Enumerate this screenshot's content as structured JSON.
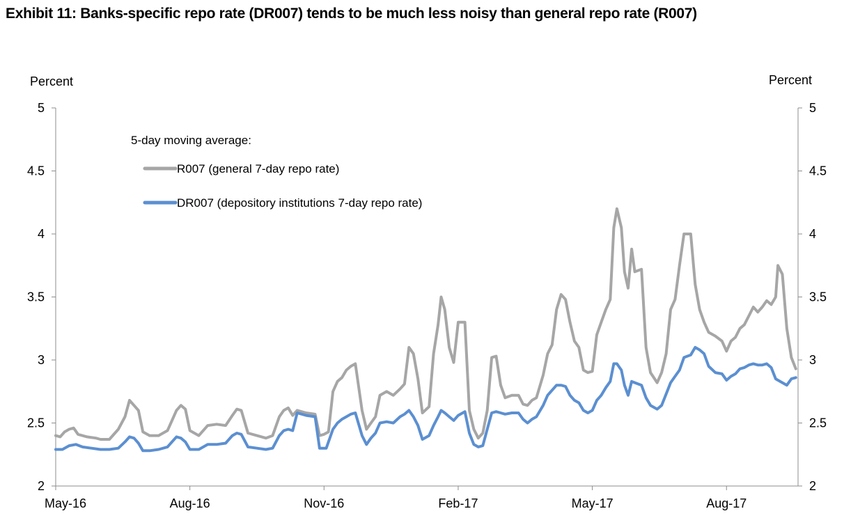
{
  "title": "Exhibit 11: Banks-specific repo rate (DR007) tends to be much less noisy than general repo rate (R007)",
  "chart_data": {
    "type": "line",
    "ylabel_left": "Percent",
    "ylabel_right": "Percent",
    "ylim": [
      2,
      5
    ],
    "yticks": [
      "2",
      "2.5",
      "3",
      "3.5",
      "4",
      "4.5",
      "5"
    ],
    "ytick_values": [
      2,
      2.5,
      3,
      3.5,
      4,
      4.5,
      5
    ],
    "xlim": [
      0,
      16.6
    ],
    "x_unit": "months since May-16",
    "xticks": [
      "May-16",
      "Aug-16",
      "Nov-16",
      "Feb-17",
      "May-17",
      "Aug-17"
    ],
    "xtick_values": [
      0,
      3,
      6,
      9,
      12,
      15
    ],
    "legend_title": "5-day moving average:",
    "legend_position": "top-left",
    "series": [
      {
        "name": "R007 (general 7-day repo rate)",
        "color": "#a6a6a6",
        "points": [
          [
            0.0,
            2.4
          ],
          [
            0.1,
            2.39
          ],
          [
            0.2,
            2.43
          ],
          [
            0.3,
            2.45
          ],
          [
            0.4,
            2.46
          ],
          [
            0.5,
            2.41
          ],
          [
            0.7,
            2.39
          ],
          [
            0.9,
            2.38
          ],
          [
            1.0,
            2.37
          ],
          [
            1.2,
            2.37
          ],
          [
            1.4,
            2.45
          ],
          [
            1.55,
            2.55
          ],
          [
            1.65,
            2.68
          ],
          [
            1.75,
            2.64
          ],
          [
            1.85,
            2.6
          ],
          [
            1.95,
            2.43
          ],
          [
            2.1,
            2.4
          ],
          [
            2.3,
            2.4
          ],
          [
            2.5,
            2.44
          ],
          [
            2.6,
            2.52
          ],
          [
            2.7,
            2.6
          ],
          [
            2.8,
            2.64
          ],
          [
            2.9,
            2.61
          ],
          [
            3.0,
            2.44
          ],
          [
            3.2,
            2.4
          ],
          [
            3.4,
            2.48
          ],
          [
            3.6,
            2.49
          ],
          [
            3.8,
            2.48
          ],
          [
            3.95,
            2.56
          ],
          [
            4.05,
            2.61
          ],
          [
            4.15,
            2.6
          ],
          [
            4.3,
            2.42
          ],
          [
            4.5,
            2.4
          ],
          [
            4.7,
            2.38
          ],
          [
            4.85,
            2.4
          ],
          [
            5.0,
            2.55
          ],
          [
            5.1,
            2.6
          ],
          [
            5.2,
            2.62
          ],
          [
            5.3,
            2.56
          ],
          [
            5.4,
            2.6
          ],
          [
            5.6,
            2.58
          ],
          [
            5.8,
            2.57
          ],
          [
            5.9,
            2.4
          ],
          [
            6.0,
            2.41
          ],
          [
            6.1,
            2.43
          ],
          [
            6.2,
            2.75
          ],
          [
            6.3,
            2.83
          ],
          [
            6.4,
            2.86
          ],
          [
            6.5,
            2.92
          ],
          [
            6.6,
            2.95
          ],
          [
            6.7,
            2.97
          ],
          [
            6.85,
            2.6
          ],
          [
            6.95,
            2.45
          ],
          [
            7.05,
            2.5
          ],
          [
            7.15,
            2.55
          ],
          [
            7.25,
            2.72
          ],
          [
            7.4,
            2.75
          ],
          [
            7.55,
            2.72
          ],
          [
            7.7,
            2.77
          ],
          [
            7.8,
            2.81
          ],
          [
            7.9,
            3.1
          ],
          [
            8.0,
            3.05
          ],
          [
            8.1,
            2.85
          ],
          [
            8.2,
            2.58
          ],
          [
            8.35,
            2.63
          ],
          [
            8.45,
            3.05
          ],
          [
            8.55,
            3.28
          ],
          [
            8.62,
            3.5
          ],
          [
            8.7,
            3.4
          ],
          [
            8.8,
            3.1
          ],
          [
            8.9,
            2.98
          ],
          [
            9.0,
            3.3
          ],
          [
            9.1,
            3.3
          ],
          [
            9.15,
            3.3
          ],
          [
            9.25,
            2.6
          ],
          [
            9.35,
            2.45
          ],
          [
            9.45,
            2.38
          ],
          [
            9.55,
            2.42
          ],
          [
            9.65,
            2.6
          ],
          [
            9.75,
            3.02
          ],
          [
            9.85,
            3.03
          ],
          [
            9.95,
            2.8
          ],
          [
            10.05,
            2.7
          ],
          [
            10.2,
            2.72
          ],
          [
            10.35,
            2.72
          ],
          [
            10.45,
            2.65
          ],
          [
            10.55,
            2.64
          ],
          [
            10.65,
            2.68
          ],
          [
            10.75,
            2.7
          ],
          [
            10.9,
            2.88
          ],
          [
            11.0,
            3.05
          ],
          [
            11.1,
            3.12
          ],
          [
            11.2,
            3.4
          ],
          [
            11.3,
            3.52
          ],
          [
            11.4,
            3.48
          ],
          [
            11.5,
            3.3
          ],
          [
            11.6,
            3.15
          ],
          [
            11.7,
            3.1
          ],
          [
            11.8,
            2.92
          ],
          [
            11.9,
            2.9
          ],
          [
            12.0,
            2.91
          ],
          [
            12.1,
            3.2
          ],
          [
            12.2,
            3.3
          ],
          [
            12.3,
            3.4
          ],
          [
            12.4,
            3.48
          ],
          [
            12.48,
            4.05
          ],
          [
            12.55,
            4.2
          ],
          [
            12.65,
            4.05
          ],
          [
            12.72,
            3.7
          ],
          [
            12.8,
            3.57
          ],
          [
            12.88,
            3.88
          ],
          [
            12.95,
            3.7
          ],
          [
            13.1,
            3.72
          ],
          [
            13.2,
            3.1
          ],
          [
            13.3,
            2.9
          ],
          [
            13.45,
            2.82
          ],
          [
            13.55,
            2.9
          ],
          [
            13.65,
            3.05
          ],
          [
            13.75,
            3.4
          ],
          [
            13.85,
            3.48
          ],
          [
            13.95,
            3.75
          ],
          [
            14.05,
            4.0
          ],
          [
            14.2,
            4.0
          ],
          [
            14.3,
            3.6
          ],
          [
            14.4,
            3.4
          ],
          [
            14.5,
            3.3
          ],
          [
            14.6,
            3.22
          ],
          [
            14.75,
            3.19
          ],
          [
            14.9,
            3.15
          ],
          [
            15.0,
            3.07
          ],
          [
            15.1,
            3.15
          ],
          [
            15.2,
            3.18
          ],
          [
            15.3,
            3.25
          ],
          [
            15.4,
            3.28
          ],
          [
            15.5,
            3.35
          ],
          [
            15.6,
            3.42
          ],
          [
            15.7,
            3.38
          ],
          [
            15.8,
            3.42
          ],
          [
            15.9,
            3.47
          ],
          [
            16.0,
            3.44
          ],
          [
            16.1,
            3.5
          ],
          [
            16.15,
            3.75
          ],
          [
            16.25,
            3.68
          ],
          [
            16.35,
            3.25
          ],
          [
            16.45,
            3.02
          ],
          [
            16.55,
            2.93
          ]
        ]
      },
      {
        "name": "DR007 (depository institutions 7-day repo rate)",
        "color": "#5b8fd1",
        "points": [
          [
            0.0,
            2.29
          ],
          [
            0.15,
            2.29
          ],
          [
            0.3,
            2.32
          ],
          [
            0.45,
            2.33
          ],
          [
            0.6,
            2.31
          ],
          [
            0.8,
            2.3
          ],
          [
            1.0,
            2.29
          ],
          [
            1.2,
            2.29
          ],
          [
            1.4,
            2.3
          ],
          [
            1.55,
            2.35
          ],
          [
            1.65,
            2.39
          ],
          [
            1.75,
            2.38
          ],
          [
            1.85,
            2.34
          ],
          [
            1.95,
            2.28
          ],
          [
            2.1,
            2.28
          ],
          [
            2.3,
            2.29
          ],
          [
            2.5,
            2.31
          ],
          [
            2.6,
            2.35
          ],
          [
            2.7,
            2.39
          ],
          [
            2.8,
            2.38
          ],
          [
            2.9,
            2.35
          ],
          [
            3.0,
            2.29
          ],
          [
            3.2,
            2.29
          ],
          [
            3.4,
            2.33
          ],
          [
            3.6,
            2.33
          ],
          [
            3.8,
            2.34
          ],
          [
            3.95,
            2.4
          ],
          [
            4.05,
            2.42
          ],
          [
            4.15,
            2.41
          ],
          [
            4.3,
            2.31
          ],
          [
            4.5,
            2.3
          ],
          [
            4.7,
            2.29
          ],
          [
            4.85,
            2.3
          ],
          [
            5.0,
            2.4
          ],
          [
            5.1,
            2.44
          ],
          [
            5.2,
            2.45
          ],
          [
            5.3,
            2.44
          ],
          [
            5.4,
            2.58
          ],
          [
            5.6,
            2.56
          ],
          [
            5.8,
            2.55
          ],
          [
            5.9,
            2.3
          ],
          [
            6.05,
            2.3
          ],
          [
            6.2,
            2.45
          ],
          [
            6.3,
            2.5
          ],
          [
            6.4,
            2.53
          ],
          [
            6.5,
            2.55
          ],
          [
            6.6,
            2.57
          ],
          [
            6.7,
            2.58
          ],
          [
            6.85,
            2.4
          ],
          [
            6.95,
            2.33
          ],
          [
            7.05,
            2.38
          ],
          [
            7.15,
            2.42
          ],
          [
            7.25,
            2.5
          ],
          [
            7.4,
            2.51
          ],
          [
            7.55,
            2.5
          ],
          [
            7.7,
            2.55
          ],
          [
            7.8,
            2.57
          ],
          [
            7.9,
            2.6
          ],
          [
            8.0,
            2.55
          ],
          [
            8.1,
            2.48
          ],
          [
            8.2,
            2.37
          ],
          [
            8.35,
            2.4
          ],
          [
            8.45,
            2.48
          ],
          [
            8.55,
            2.55
          ],
          [
            8.62,
            2.6
          ],
          [
            8.7,
            2.58
          ],
          [
            8.8,
            2.55
          ],
          [
            8.9,
            2.52
          ],
          [
            9.0,
            2.56
          ],
          [
            9.1,
            2.58
          ],
          [
            9.15,
            2.59
          ],
          [
            9.25,
            2.42
          ],
          [
            9.35,
            2.33
          ],
          [
            9.45,
            2.31
          ],
          [
            9.55,
            2.32
          ],
          [
            9.65,
            2.45
          ],
          [
            9.75,
            2.58
          ],
          [
            9.85,
            2.59
          ],
          [
            9.95,
            2.58
          ],
          [
            10.05,
            2.57
          ],
          [
            10.2,
            2.58
          ],
          [
            10.35,
            2.58
          ],
          [
            10.45,
            2.53
          ],
          [
            10.55,
            2.5
          ],
          [
            10.65,
            2.53
          ],
          [
            10.75,
            2.55
          ],
          [
            10.9,
            2.64
          ],
          [
            11.0,
            2.72
          ],
          [
            11.1,
            2.76
          ],
          [
            11.2,
            2.8
          ],
          [
            11.3,
            2.8
          ],
          [
            11.4,
            2.79
          ],
          [
            11.5,
            2.72
          ],
          [
            11.6,
            2.68
          ],
          [
            11.7,
            2.66
          ],
          [
            11.8,
            2.6
          ],
          [
            11.9,
            2.58
          ],
          [
            12.0,
            2.6
          ],
          [
            12.1,
            2.68
          ],
          [
            12.2,
            2.72
          ],
          [
            12.3,
            2.78
          ],
          [
            12.4,
            2.83
          ],
          [
            12.48,
            2.97
          ],
          [
            12.55,
            2.97
          ],
          [
            12.65,
            2.92
          ],
          [
            12.72,
            2.8
          ],
          [
            12.8,
            2.72
          ],
          [
            12.88,
            2.83
          ],
          [
            12.95,
            2.82
          ],
          [
            13.1,
            2.8
          ],
          [
            13.2,
            2.7
          ],
          [
            13.3,
            2.64
          ],
          [
            13.45,
            2.61
          ],
          [
            13.55,
            2.64
          ],
          [
            13.65,
            2.73
          ],
          [
            13.75,
            2.82
          ],
          [
            13.85,
            2.87
          ],
          [
            13.95,
            2.92
          ],
          [
            14.05,
            3.02
          ],
          [
            14.2,
            3.04
          ],
          [
            14.3,
            3.1
          ],
          [
            14.4,
            3.08
          ],
          [
            14.5,
            3.05
          ],
          [
            14.6,
            2.95
          ],
          [
            14.75,
            2.9
          ],
          [
            14.9,
            2.89
          ],
          [
            15.0,
            2.84
          ],
          [
            15.1,
            2.87
          ],
          [
            15.2,
            2.89
          ],
          [
            15.3,
            2.93
          ],
          [
            15.4,
            2.94
          ],
          [
            15.5,
            2.96
          ],
          [
            15.6,
            2.97
          ],
          [
            15.7,
            2.96
          ],
          [
            15.8,
            2.96
          ],
          [
            15.9,
            2.97
          ],
          [
            16.0,
            2.94
          ],
          [
            16.1,
            2.85
          ],
          [
            16.15,
            2.84
          ],
          [
            16.25,
            2.82
          ],
          [
            16.35,
            2.8
          ],
          [
            16.45,
            2.85
          ],
          [
            16.55,
            2.86
          ]
        ]
      }
    ]
  }
}
